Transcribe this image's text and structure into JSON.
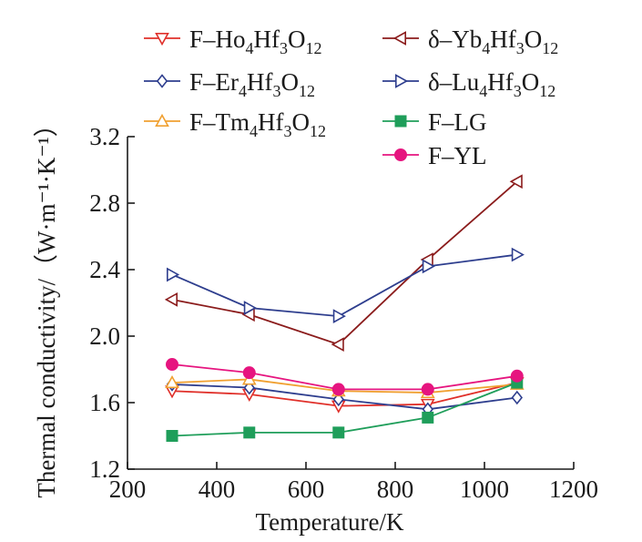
{
  "chart_data": {
    "type": "line",
    "xlabel": "Temperature/K",
    "ylabel": "Thermal conductivity/（W·m⁻¹·K⁻¹）",
    "xlim": [
      200,
      1200
    ],
    "ylim": [
      1.2,
      3.2
    ],
    "xticks": [
      "200",
      "400",
      "600",
      "800",
      "1000",
      "1200"
    ],
    "yticks": [
      "1.2",
      "1.6",
      "2.0",
      "2.4",
      "2.8",
      "3.2"
    ],
    "grid": false,
    "legend_position": "top",
    "series": [
      {
        "name": "F–Ho4Hf3O12",
        "label_base": "F–Ho",
        "label_parts": [
          [
            "4",
            "sub"
          ],
          [
            "Hf",
            "n"
          ],
          [
            "3",
            "sub"
          ],
          [
            "O",
            "n"
          ],
          [
            "12",
            "sub"
          ]
        ],
        "color": "#e0302a",
        "marker": "triangle-down-open",
        "x": [
          300,
          473,
          673,
          873,
          1073
        ],
        "y": [
          1.67,
          1.65,
          1.58,
          1.59,
          1.72
        ]
      },
      {
        "name": "F–Er4Hf3O12",
        "label_base": "F–Er",
        "label_parts": [
          [
            "4",
            "sub"
          ],
          [
            "Hf",
            "n"
          ],
          [
            "3",
            "sub"
          ],
          [
            "O",
            "n"
          ],
          [
            "12",
            "sub"
          ]
        ],
        "color": "#2e3e8e",
        "marker": "diamond-open",
        "x": [
          300,
          473,
          673,
          873,
          1073
        ],
        "y": [
          1.71,
          1.69,
          1.62,
          1.56,
          1.63
        ]
      },
      {
        "name": "F–Tm4Hf3O12",
        "label_base": "F–Tm",
        "label_parts": [
          [
            "4",
            "sub"
          ],
          [
            "Hf",
            "n"
          ],
          [
            "3",
            "sub"
          ],
          [
            "O",
            "n"
          ],
          [
            "12",
            "sub"
          ]
        ],
        "color": "#f0a030",
        "marker": "triangle-up-open",
        "x": [
          300,
          473,
          673,
          873,
          1073
        ],
        "y": [
          1.72,
          1.74,
          1.67,
          1.66,
          1.71
        ]
      },
      {
        "name": "δ–Yb4Hf3O12",
        "label_base": "δ–Yb",
        "label_parts": [
          [
            "4",
            "sub"
          ],
          [
            "Hf",
            "n"
          ],
          [
            "3",
            "sub"
          ],
          [
            "O",
            "n"
          ],
          [
            "12",
            "sub"
          ]
        ],
        "color": "#8b1c1c",
        "marker": "triangle-left-open",
        "x": [
          300,
          473,
          673,
          873,
          1073
        ],
        "y": [
          2.22,
          2.13,
          1.95,
          2.46,
          2.93
        ]
      },
      {
        "name": "δ–Lu4Hf3O12",
        "label_base": "δ–Lu",
        "label_parts": [
          [
            "4",
            "sub"
          ],
          [
            "Hf",
            "n"
          ],
          [
            "3",
            "sub"
          ],
          [
            "O",
            "n"
          ],
          [
            "12",
            "sub"
          ]
        ],
        "color": "#2e3e8e",
        "marker": "triangle-right-open",
        "x": [
          300,
          473,
          673,
          873,
          1073
        ],
        "y": [
          2.37,
          2.17,
          2.12,
          2.42,
          2.49
        ]
      },
      {
        "name": "F–LG",
        "label_base": "F–LG",
        "label_parts": [],
        "color": "#1f9e5a",
        "marker": "square-filled",
        "x": [
          300,
          473,
          673,
          873,
          1073
        ],
        "y": [
          1.4,
          1.42,
          1.42,
          1.51,
          1.72
        ]
      },
      {
        "name": "F–YL",
        "label_base": "F–YL",
        "label_parts": [],
        "color": "#e6157f",
        "marker": "circle-filled",
        "x": [
          300,
          473,
          673,
          873,
          1073
        ],
        "y": [
          1.83,
          1.78,
          1.68,
          1.68,
          1.76
        ]
      }
    ]
  }
}
